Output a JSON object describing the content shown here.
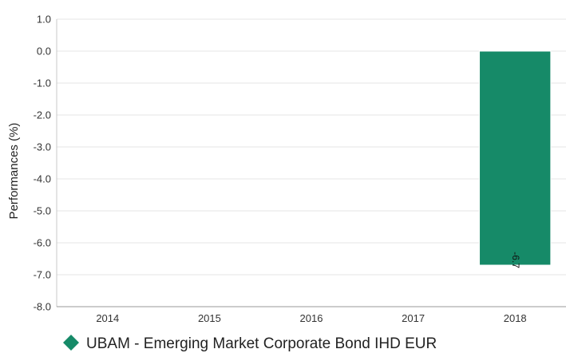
{
  "chart_data": {
    "type": "bar",
    "categories": [
      "2014",
      "2015",
      "2016",
      "2017",
      "2018"
    ],
    "series": [
      {
        "name": "UBAM - Emerging Market Corporate Bond IHD EUR",
        "values": [
          null,
          null,
          null,
          null,
          -6.7
        ],
        "color": "#168a68"
      }
    ],
    "data_labels": [
      "",
      "",
      "",
      "",
      "-6.7"
    ],
    "ylabel": "Performances (%)",
    "ylim": [
      -8.0,
      1.0
    ],
    "yticks": [
      "1.0",
      "0.0",
      "-1.0",
      "-2.0",
      "-3.0",
      "-4.0",
      "-5.0",
      "-6.0",
      "-7.0",
      "-8.0"
    ],
    "ytick_values": [
      1,
      0,
      -1,
      -2,
      -3,
      -4,
      -5,
      -6,
      -7,
      -8
    ],
    "grid": true,
    "legend_position": "bottom-left",
    "legend_marker": "diamond"
  }
}
